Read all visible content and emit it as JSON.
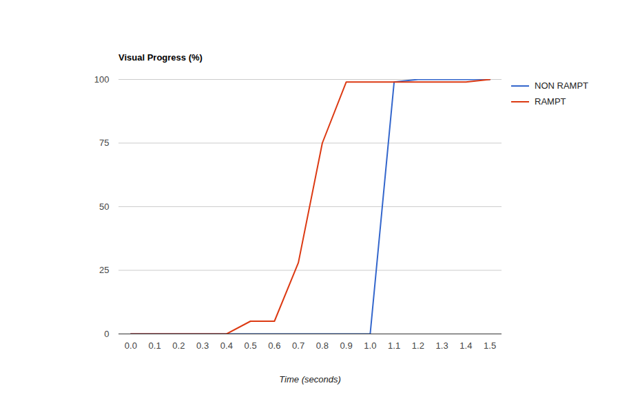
{
  "chart_data": {
    "type": "line",
    "title": "Visual Progress (%)",
    "x_label": "Time (seconds)",
    "x": [
      0,
      0.1,
      0.2,
      0.3,
      0.4,
      0.5,
      0.6,
      0.7,
      0.8,
      0.9,
      1,
      1.1,
      1.2,
      1.3,
      1.4,
      1.5
    ],
    "series": [
      {
        "name": "NON RAMPT",
        "color": "#3366cc",
        "values": [
          0,
          0,
          0,
          0,
          0,
          0,
          0,
          0,
          0,
          0,
          0,
          99,
          100,
          100,
          100,
          100
        ]
      },
      {
        "name": "RAMPT",
        "color": "#dc3912",
        "values": [
          0,
          0,
          0,
          0,
          0,
          5,
          5,
          28,
          75,
          99,
          99,
          99,
          99,
          99,
          99,
          100
        ]
      }
    ],
    "xlim": [
      -0.05,
      1.55
    ],
    "xticks": [
      {
        "value": 0,
        "label": "0.0"
      },
      0.1,
      0.2,
      0.3,
      0.4,
      0.5,
      0.6,
      0.7,
      0.8,
      0.9,
      {
        "value": 1,
        "label": "1.0"
      },
      1.1,
      1.2,
      1.3,
      1.4,
      1.5
    ],
    "ylim": [
      0,
      100
    ],
    "yticks": [
      0,
      25,
      50,
      75,
      100
    ],
    "grid": true,
    "legend": "right"
  }
}
